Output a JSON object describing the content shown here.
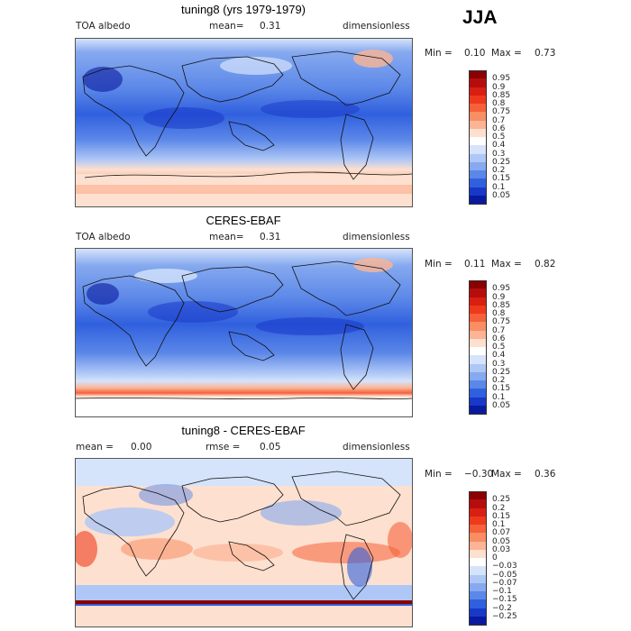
{
  "season": "JJA",
  "panels": [
    {
      "title": "tuning8 (yrs 1979-1979)",
      "left_label": "TOA albedo",
      "mean_label": "mean=",
      "mean_value": "0.31",
      "units": "dimensionless",
      "min_label": "Min =",
      "min_value": "0.10",
      "max_label": "Max =",
      "max_value": "0.73",
      "colorbar": {
        "labels": [
          "0.95",
          "0.9",
          "0.85",
          "0.8",
          "0.75",
          "0.7",
          "0.6",
          "0.5",
          "0.4",
          "0.3",
          "0.25",
          "0.2",
          "0.15",
          "0.1",
          "0.05"
        ],
        "colors": [
          "#8b0000",
          "#b50d0d",
          "#d91f12",
          "#ee3a1c",
          "#f6603a",
          "#f98d63",
          "#fbb494",
          "#fde0cf",
          "#ffffff",
          "#d5e3fb",
          "#aec7f6",
          "#86a9ef",
          "#5b87e8",
          "#3060de",
          "#1838c8",
          "#0a1a9e"
        ]
      }
    },
    {
      "title": "CERES-EBAF",
      "left_label": "TOA albedo",
      "mean_label": "mean=",
      "mean_value": "0.31",
      "units": "dimensionless",
      "min_label": "Min =",
      "min_value": "0.11",
      "max_label": "Max =",
      "max_value": "0.82",
      "colorbar": {
        "labels": [
          "0.95",
          "0.9",
          "0.85",
          "0.8",
          "0.75",
          "0.7",
          "0.6",
          "0.5",
          "0.4",
          "0.3",
          "0.25",
          "0.2",
          "0.15",
          "0.1",
          "0.05"
        ],
        "colors": [
          "#8b0000",
          "#b50d0d",
          "#d91f12",
          "#ee3a1c",
          "#f6603a",
          "#f98d63",
          "#fbb494",
          "#fde0cf",
          "#ffffff",
          "#d5e3fb",
          "#aec7f6",
          "#86a9ef",
          "#5b87e8",
          "#3060de",
          "#1838c8",
          "#0a1a9e"
        ]
      }
    },
    {
      "title": "tuning8 - CERES-EBAF",
      "left_label": "mean =",
      "left_value": "0.00",
      "mean_label": "rmse =",
      "mean_value": "0.05",
      "units": "dimensionless",
      "min_label": "Min =",
      "min_value": "−0.30",
      "max_label": "Max =",
      "max_value": "0.36",
      "colorbar": {
        "labels": [
          "0.25",
          "0.2",
          "0.15",
          "0.1",
          "0.07",
          "0.05",
          "0.03",
          "0",
          "−0.03",
          "−0.05",
          "−0.07",
          "−0.1",
          "−0.15",
          "−0.2",
          "−0.25"
        ],
        "colors": [
          "#8b0000",
          "#b50d0d",
          "#d91f12",
          "#ee3a1c",
          "#f6603a",
          "#f98d63",
          "#fbb494",
          "#fde0cf",
          "#ffffff",
          "#d5e3fb",
          "#aec7f6",
          "#86a9ef",
          "#5b87e8",
          "#3060de",
          "#1838c8",
          "#0a1a9e"
        ]
      }
    }
  ]
}
